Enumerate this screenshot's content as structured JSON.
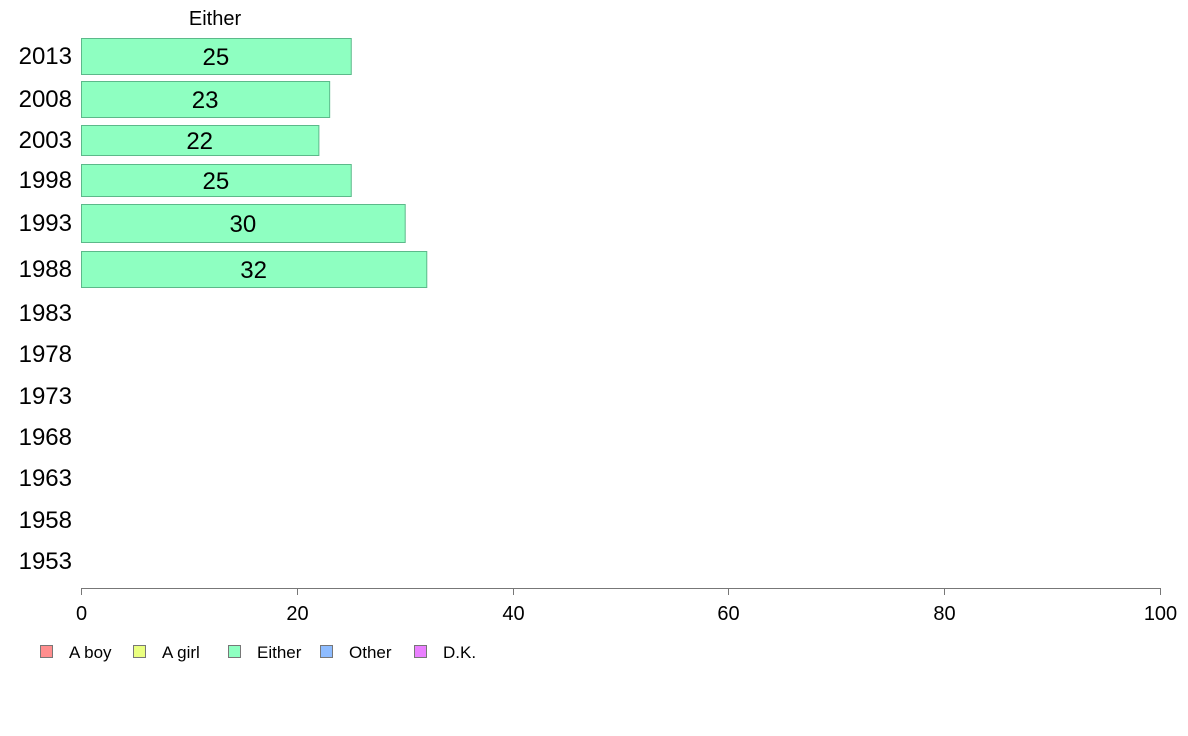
{
  "chart_data": {
    "type": "bar",
    "orientation": "horizontal",
    "title": "Either",
    "categories": [
      "2013",
      "2008",
      "2003",
      "1998",
      "1993",
      "1988",
      "1983",
      "1978",
      "1973",
      "1968",
      "1963",
      "1958",
      "1953"
    ],
    "series": [
      {
        "name": "Either",
        "color": "#8effc1",
        "values": [
          25,
          23,
          22,
          25,
          30,
          32,
          null,
          null,
          null,
          null,
          null,
          null,
          null
        ]
      }
    ],
    "xlim": [
      0,
      100
    ],
    "xticks": [
      0,
      20,
      40,
      60,
      80,
      100
    ],
    "grid": false,
    "legend": {
      "placement": "bottom-left",
      "items": [
        {
          "label": "A boy",
          "color": "#ff8e8e"
        },
        {
          "label": "A girl",
          "color": "#eaff80"
        },
        {
          "label": "Either",
          "color": "#8effc1"
        },
        {
          "label": "Other",
          "color": "#8ebcff"
        },
        {
          "label": "D.K.",
          "color": "#ea80ff"
        }
      ]
    }
  }
}
